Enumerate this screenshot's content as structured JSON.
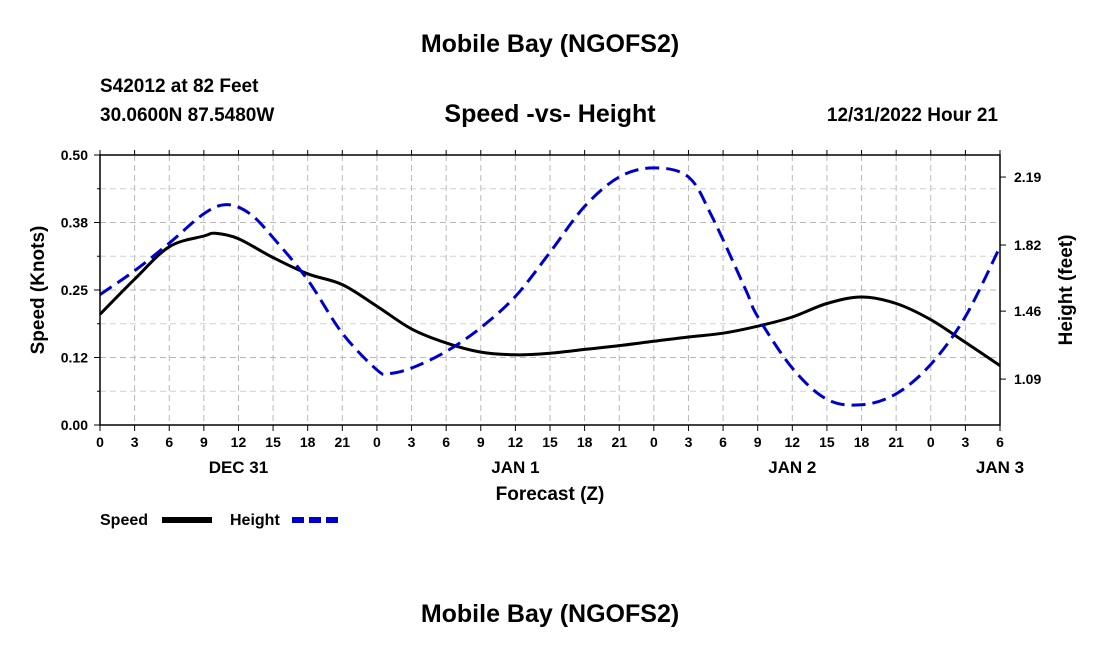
{
  "header": {
    "title": "Mobile Bay (NGOFS2)",
    "station": "S42012 at 82 Feet",
    "coords": "30.0600N  87.5480W",
    "datetime": "12/31/2022 Hour 21",
    "bottom_title": "Mobile Bay (NGOFS2)"
  },
  "chart_data": {
    "type": "line",
    "title": "Speed -vs- Height",
    "xlabel": "Forecast (Z)",
    "ylabel": "Speed (Knots)",
    "y2label": "Height (feet)",
    "x_hours": [
      0,
      3,
      6,
      9,
      12,
      15,
      18,
      21,
      24,
      27,
      30,
      33,
      36,
      39,
      42,
      45,
      48,
      51,
      54,
      57,
      60,
      63,
      66,
      69,
      72,
      75,
      78
    ],
    "x_tick_labels": [
      "0",
      "3",
      "6",
      "9",
      "12",
      "15",
      "18",
      "21",
      "0",
      "3",
      "6",
      "9",
      "12",
      "15",
      "18",
      "21",
      "0",
      "3",
      "6",
      "9",
      "12",
      "15",
      "18",
      "21",
      "0",
      "3",
      "6"
    ],
    "day_labels": [
      {
        "label": "DEC 31",
        "hour": 12
      },
      {
        "label": "JAN 1",
        "hour": 36
      },
      {
        "label": "JAN 2",
        "hour": 60
      },
      {
        "label": "JAN 3",
        "hour": 78
      }
    ],
    "ylim": [
      0,
      0.5
    ],
    "y_ticks": [
      0.0,
      0.125,
      0.25,
      0.375,
      0.5
    ],
    "y_tick_labels": [
      "0.00",
      "0.12",
      "0.25",
      "0.38",
      "0.50"
    ],
    "y2lim": [
      0.84,
      2.31
    ],
    "y2_ticks": [
      1.09,
      1.46,
      1.82,
      2.19
    ],
    "y2_tick_labels": [
      "1.09",
      "1.46",
      "1.82",
      "2.19"
    ],
    "series": [
      {
        "name": "Speed",
        "axis": "left",
        "color": "#000000",
        "dashed": false,
        "x": [
          0,
          3,
          6,
          9,
          10,
          12,
          15,
          18,
          21,
          24,
          27,
          30,
          33,
          36,
          39,
          42,
          45,
          48,
          51,
          54,
          57,
          60,
          63,
          66,
          69,
          72,
          75,
          78
        ],
        "y": [
          0.205,
          0.27,
          0.33,
          0.35,
          0.355,
          0.345,
          0.31,
          0.28,
          0.26,
          0.22,
          0.178,
          0.152,
          0.135,
          0.13,
          0.133,
          0.14,
          0.147,
          0.155,
          0.163,
          0.17,
          0.183,
          0.2,
          0.225,
          0.237,
          0.225,
          0.195,
          0.153,
          0.11
        ]
      },
      {
        "name": "Height",
        "axis": "right",
        "color": "#0000cc",
        "dashed": true,
        "x": [
          0,
          3,
          6,
          9,
          11,
          13,
          15,
          18,
          21,
          24,
          25,
          27,
          30,
          33,
          36,
          39,
          42,
          45,
          48,
          51,
          53,
          56,
          57,
          60,
          63,
          66,
          69,
          72,
          75,
          78
        ],
        "y": [
          1.55,
          1.68,
          1.83,
          1.99,
          2.04,
          1.99,
          1.86,
          1.63,
          1.34,
          1.14,
          1.12,
          1.15,
          1.24,
          1.37,
          1.54,
          1.78,
          2.03,
          2.19,
          2.24,
          2.19,
          1.98,
          1.57,
          1.43,
          1.15,
          0.98,
          0.95,
          1.01,
          1.17,
          1.43,
          1.81
        ]
      }
    ],
    "legend": [
      {
        "label": "Speed"
      },
      {
        "label": "Height"
      }
    ]
  }
}
